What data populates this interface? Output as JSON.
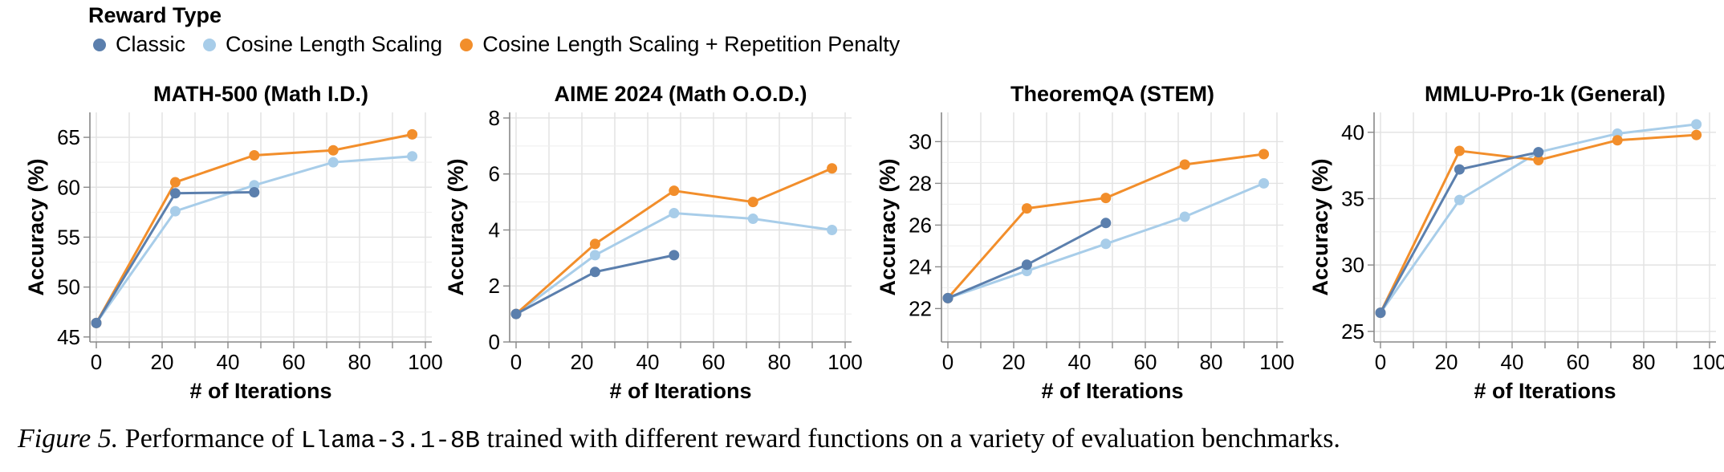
{
  "legend": {
    "title": "Reward Type",
    "items": [
      {
        "label": "Classic",
        "color": "#5b7fad"
      },
      {
        "label": "Cosine Length Scaling",
        "color": "#a8cde9"
      },
      {
        "label": "Cosine Length Scaling + Repetition Penalty",
        "color": "#f28e2b"
      }
    ]
  },
  "chart_data": [
    {
      "type": "line",
      "title": "MATH-500 (Math I.D.)",
      "xlabel": "# of Iterations",
      "ylabel": "Accuracy (%)",
      "xlim": [
        0,
        100
      ],
      "ylim": [
        44.5,
        67.5
      ],
      "xticks": [
        0,
        20,
        40,
        60,
        80,
        100
      ],
      "yticks": [
        45,
        50,
        55,
        60,
        65
      ],
      "grid": true,
      "series": [
        {
          "name": "Classic",
          "x": [
            0,
            24,
            48
          ],
          "values": [
            46.4,
            59.4,
            59.5
          ]
        },
        {
          "name": "Cosine Length Scaling",
          "x": [
            0,
            24,
            48,
            72,
            96
          ],
          "values": [
            46.4,
            57.6,
            60.2,
            62.5,
            63.1
          ]
        },
        {
          "name": "Cosine Length Scaling + Repetition Penalty",
          "x": [
            0,
            24,
            48,
            72,
            96
          ],
          "values": [
            46.4,
            60.5,
            63.2,
            63.7,
            65.3
          ]
        }
      ]
    },
    {
      "type": "line",
      "title": "AIME 2024 (Math O.O.D.)",
      "xlabel": "# of Iterations",
      "ylabel": "Accuracy (%)",
      "xlim": [
        0,
        100
      ],
      "ylim": [
        0,
        8.2
      ],
      "xticks": [
        0,
        20,
        40,
        60,
        80,
        100
      ],
      "yticks": [
        0,
        2,
        4,
        6,
        8
      ],
      "grid": true,
      "series": [
        {
          "name": "Classic",
          "x": [
            0,
            24,
            48
          ],
          "values": [
            1.0,
            2.5,
            3.1
          ]
        },
        {
          "name": "Cosine Length Scaling",
          "x": [
            0,
            24,
            48,
            72,
            96
          ],
          "values": [
            1.0,
            3.1,
            4.6,
            4.4,
            4.0
          ]
        },
        {
          "name": "Cosine Length Scaling + Repetition Penalty",
          "x": [
            0,
            24,
            48,
            72,
            96
          ],
          "values": [
            1.0,
            3.5,
            5.4,
            5.0,
            6.2
          ]
        }
      ]
    },
    {
      "type": "line",
      "title": "TheoremQA (STEM)",
      "xlabel": "# of Iterations",
      "ylabel": "Accuracy (%)",
      "xlim": [
        0,
        100
      ],
      "ylim": [
        20.4,
        31.4
      ],
      "xticks": [
        0,
        20,
        40,
        60,
        80,
        100
      ],
      "yticks": [
        22,
        24,
        26,
        28,
        30
      ],
      "grid": true,
      "series": [
        {
          "name": "Classic",
          "x": [
            0,
            24,
            48
          ],
          "values": [
            22.5,
            24.1,
            26.1
          ]
        },
        {
          "name": "Cosine Length Scaling",
          "x": [
            0,
            24,
            48,
            72,
            96
          ],
          "values": [
            22.5,
            23.8,
            25.1,
            26.4,
            28.0
          ]
        },
        {
          "name": "Cosine Length Scaling + Repetition Penalty",
          "x": [
            0,
            24,
            48,
            72,
            96
          ],
          "values": [
            22.5,
            26.8,
            27.3,
            28.9,
            29.4
          ]
        }
      ]
    },
    {
      "type": "line",
      "title": "MMLU-Pro-1k (General)",
      "xlabel": "# of Iterations",
      "ylabel": "Accuracy (%)",
      "xlim": [
        0,
        100
      ],
      "ylim": [
        24.2,
        41.5
      ],
      "xticks": [
        0,
        20,
        40,
        60,
        80,
        100
      ],
      "yticks": [
        25,
        30,
        35,
        40
      ],
      "grid": true,
      "series": [
        {
          "name": "Classic",
          "x": [
            0,
            24,
            48
          ],
          "values": [
            26.4,
            37.2,
            38.5
          ]
        },
        {
          "name": "Cosine Length Scaling",
          "x": [
            0,
            24,
            48,
            72,
            96
          ],
          "values": [
            26.4,
            34.9,
            38.5,
            39.9,
            40.6
          ]
        },
        {
          "name": "Cosine Length Scaling + Repetition Penalty",
          "x": [
            0,
            24,
            48,
            72,
            96
          ],
          "values": [
            26.4,
            38.6,
            37.9,
            39.4,
            39.8
          ]
        }
      ]
    }
  ],
  "caption": {
    "label": "Figure 5.",
    "text_before": " Performance of ",
    "model": "Llama-3.1-8B",
    "text_after": " trained with different reward functions on a variety of evaluation benchmarks."
  }
}
